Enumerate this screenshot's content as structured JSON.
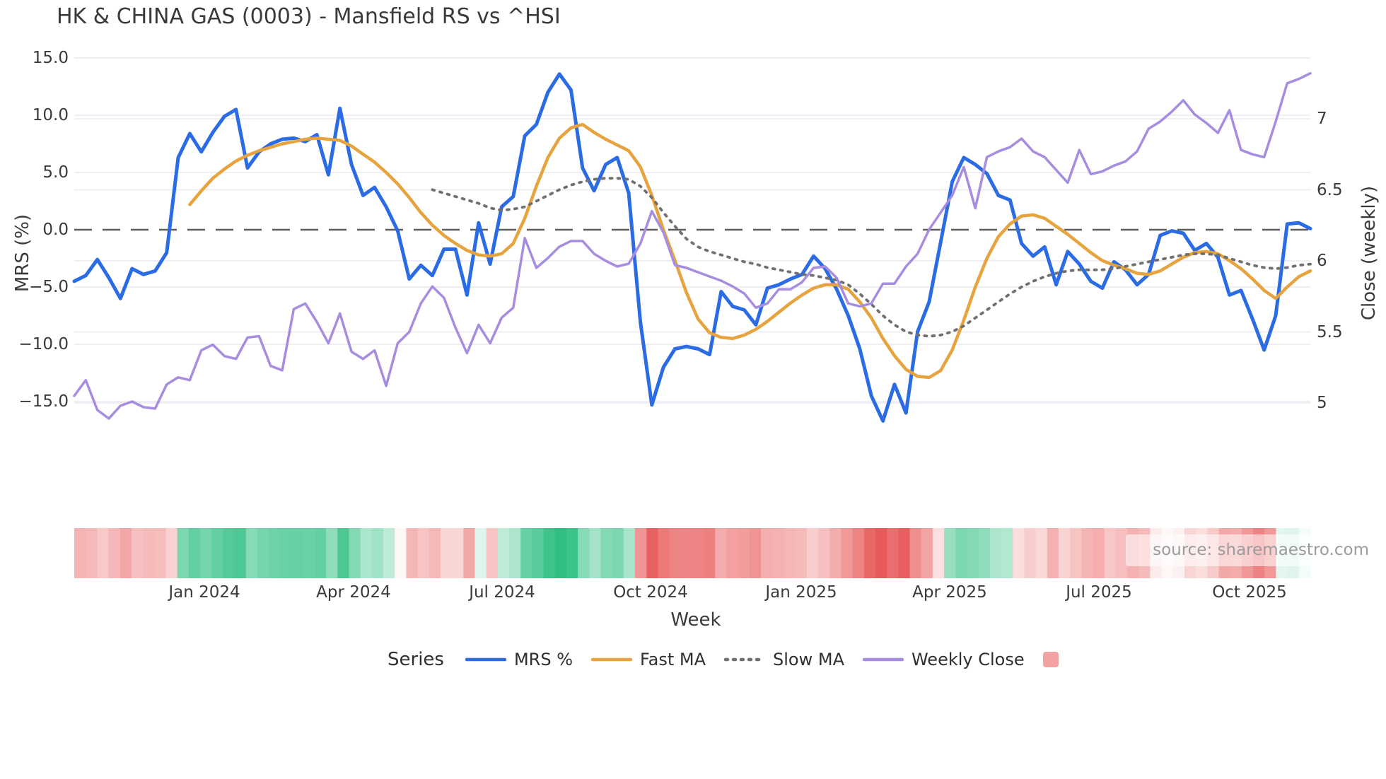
{
  "title": "HK & CHINA GAS (0003) - Mansfield RS vs ^HSI",
  "source": "source: sharemaestro.com",
  "axes": {
    "left_label": "MRS (%)",
    "right_label": "Close (weekly)",
    "x_label": "Week",
    "left_ticks": [
      {
        "value": 15,
        "label": "15.0"
      },
      {
        "value": 10,
        "label": "10.0"
      },
      {
        "value": 5,
        "label": "5.0"
      },
      {
        "value": 0,
        "label": "0.0"
      },
      {
        "value": -5,
        "label": "−5.0"
      },
      {
        "value": -10,
        "label": "−10.0"
      },
      {
        "value": -15,
        "label": "−15.0"
      }
    ],
    "right_ticks": [
      {
        "value": 7,
        "label": "7"
      },
      {
        "value": 6.5,
        "label": "6.5"
      },
      {
        "value": 6,
        "label": "6"
      },
      {
        "value": 5.5,
        "label": "5.5"
      },
      {
        "value": 5,
        "label": "5"
      }
    ],
    "x_ticks": [
      {
        "week": 11.26,
        "label": "Jan 2024"
      },
      {
        "week": 24.18,
        "label": "Apr 2024"
      },
      {
        "week": 37.03,
        "label": "Jul 2024"
      },
      {
        "week": 49.89,
        "label": "Oct 2024"
      },
      {
        "week": 62.93,
        "label": "Jan 2025"
      },
      {
        "week": 75.78,
        "label": "Apr 2025"
      },
      {
        "week": 88.7,
        "label": "Jul 2025"
      },
      {
        "week": 101.74,
        "label": "Oct 2025"
      }
    ]
  },
  "legend": {
    "title": "Series",
    "items": [
      {
        "label": "MRS %",
        "type": "line",
        "color": "#2b6be4",
        "dash": null
      },
      {
        "label": "Fast MA",
        "type": "line",
        "color": "#e6a33e",
        "dash": null
      },
      {
        "label": "Slow MA",
        "type": "line",
        "color": "#707070",
        "dash": "3 8"
      },
      {
        "label": "Weekly Close",
        "type": "line",
        "color": "#a78de0",
        "dash": null
      },
      {
        "label": "",
        "type": "square",
        "color": "#f2a2a2"
      }
    ]
  },
  "colors": {
    "grid": "#e9e9f0",
    "zero_line": "#5c5c5c",
    "text": "#3a3a3a",
    "heat_positive": "#2fbf81",
    "heat_negative": "#e85a5a"
  },
  "chart_data": {
    "type": "line",
    "title": "HK & CHINA GAS (0003) - Mansfield RS vs ^HSI",
    "xlabel": "Week",
    "ylabel_left": "MRS (%)",
    "ylabel_right": "Close (weekly)",
    "ylim_left": [
      -17.5,
      15.9
    ],
    "ylim_right": [
      4.85,
      7.45
    ],
    "x_range_labels": [
      "Oct 2023",
      "Nov 2025"
    ],
    "n_weeks": 108,
    "grid": true,
    "zero_line": true,
    "legend_position": "bottom",
    "heatmap": {
      "source_series": "MRS %",
      "note": "weekly strip under plot: red for negative MRS, green for positive",
      "positive_color": "#2fbf81",
      "negative_color": "#e85a5a",
      "positive_full_at": 13.6,
      "negative_full_at": 16.7
    },
    "series": [
      {
        "name": "MRS %",
        "axis": "left",
        "color": "#2b6be4",
        "width": 5,
        "dash": null,
        "values": [
          -4.5,
          -4.0,
          -2.6,
          -4.2,
          -6.0,
          -3.4,
          -3.9,
          -3.6,
          -2.0,
          6.3,
          8.4,
          6.8,
          8.5,
          9.9,
          10.5,
          5.4,
          6.8,
          7.5,
          7.9,
          8.0,
          7.7,
          8.3,
          4.8,
          10.6,
          5.7,
          3.0,
          3.7,
          2.0,
          -0.1,
          -4.3,
          -3.1,
          -4.0,
          -1.7,
          -1.7,
          -5.7,
          0.6,
          -3.0,
          2.0,
          2.9,
          8.2,
          9.2,
          12.0,
          13.6,
          12.2,
          5.4,
          3.4,
          5.7,
          6.3,
          3.2,
          -8.0,
          -15.3,
          -12.0,
          -10.4,
          -10.2,
          -10.4,
          -10.9,
          -5.4,
          -6.7,
          -7.0,
          -8.3,
          -5.1,
          -4.8,
          -4.3,
          -3.9,
          -2.3,
          -3.4,
          -5.2,
          -7.5,
          -10.4,
          -14.5,
          -16.7,
          -13.5,
          -16.0,
          -8.9,
          -6.3,
          -1.1,
          4.2,
          6.3,
          5.7,
          4.9,
          3.0,
          2.6,
          -1.2,
          -2.3,
          -1.5,
          -4.8,
          -1.9,
          -3.0,
          -4.5,
          -5.1,
          -2.8,
          -3.5,
          -4.8,
          -3.9,
          -0.5,
          -0.1,
          -0.3,
          -1.8,
          -1.2,
          -2.4,
          -5.7,
          -5.3,
          -7.8,
          -10.5,
          -7.5,
          0.5,
          0.6,
          0.1
        ]
      },
      {
        "name": "Fast MA",
        "axis": "left",
        "color": "#e6a33e",
        "width": 4.5,
        "dash": null,
        "values": [
          null,
          null,
          null,
          null,
          null,
          null,
          null,
          null,
          null,
          null,
          2.2,
          3.4,
          4.5,
          5.3,
          6.0,
          6.5,
          6.9,
          7.2,
          7.5,
          7.7,
          7.9,
          8.0,
          7.9,
          7.8,
          7.3,
          6.6,
          5.9,
          5.0,
          4.0,
          2.8,
          1.5,
          0.4,
          -0.5,
          -1.2,
          -1.8,
          -2.2,
          -2.3,
          -2.1,
          -1.2,
          1.0,
          3.8,
          6.3,
          8.0,
          8.9,
          9.2,
          8.5,
          7.9,
          7.4,
          6.9,
          5.5,
          3.0,
          0.0,
          -2.7,
          -5.5,
          -7.8,
          -9.0,
          -9.4,
          -9.5,
          -9.2,
          -8.7,
          -8.0,
          -7.2,
          -6.4,
          -5.7,
          -5.1,
          -4.8,
          -4.8,
          -5.2,
          -6.3,
          -7.7,
          -9.5,
          -11.0,
          -12.2,
          -12.8,
          -12.9,
          -12.3,
          -10.5,
          -7.9,
          -5.0,
          -2.5,
          -0.6,
          0.5,
          1.2,
          1.3,
          1.0,
          0.3,
          -0.4,
          -1.2,
          -2.0,
          -2.7,
          -3.1,
          -3.4,
          -3.8,
          -3.9,
          -3.6,
          -3.0,
          -2.4,
          -2.0,
          -1.9,
          -2.1,
          -2.7,
          -3.4,
          -4.3,
          -5.3,
          -6.0,
          -5.0,
          -4.1,
          -3.6
        ]
      },
      {
        "name": "Slow MA",
        "axis": "left",
        "color": "#707070",
        "width": 3.8,
        "dash": "3 8",
        "values": [
          null,
          null,
          null,
          null,
          null,
          null,
          null,
          null,
          null,
          null,
          null,
          null,
          null,
          null,
          null,
          null,
          null,
          null,
          null,
          null,
          null,
          null,
          null,
          null,
          null,
          null,
          null,
          null,
          null,
          null,
          null,
          3.5,
          3.2,
          2.9,
          2.6,
          2.3,
          1.9,
          1.7,
          1.8,
          2.0,
          2.5,
          3.0,
          3.5,
          3.9,
          4.2,
          4.4,
          4.5,
          4.5,
          4.4,
          3.8,
          2.8,
          1.5,
          0.3,
          -0.8,
          -1.5,
          -1.9,
          -2.2,
          -2.5,
          -2.8,
          -3.0,
          -3.3,
          -3.5,
          -3.7,
          -3.9,
          -4.0,
          -4.2,
          -4.4,
          -4.8,
          -5.6,
          -6.5,
          -7.5,
          -8.3,
          -8.9,
          -9.2,
          -9.3,
          -9.2,
          -8.9,
          -8.4,
          -7.7,
          -7.0,
          -6.3,
          -5.6,
          -5.0,
          -4.5,
          -4.1,
          -3.8,
          -3.6,
          -3.5,
          -3.5,
          -3.5,
          -3.4,
          -3.2,
          -3.0,
          -2.8,
          -2.6,
          -2.4,
          -2.2,
          -2.1,
          -2.1,
          -2.2,
          -2.5,
          -2.8,
          -3.1,
          -3.3,
          -3.4,
          -3.3,
          -3.1,
          -3.0
        ]
      },
      {
        "name": "Weekly Close",
        "axis": "right",
        "color": "#a78de0",
        "width": 3.5,
        "dash": null,
        "values": [
          5.05,
          5.16,
          4.95,
          4.89,
          4.98,
          5.01,
          4.97,
          4.96,
          5.13,
          5.18,
          5.16,
          5.37,
          5.41,
          5.33,
          5.31,
          5.46,
          5.47,
          5.26,
          5.23,
          5.66,
          5.7,
          5.57,
          5.42,
          5.63,
          5.36,
          5.31,
          5.37,
          5.12,
          5.42,
          5.5,
          5.7,
          5.82,
          5.74,
          5.53,
          5.35,
          5.55,
          5.42,
          5.6,
          5.67,
          6.16,
          5.95,
          6.02,
          6.1,
          6.14,
          6.14,
          6.05,
          6.0,
          5.96,
          5.98,
          6.12,
          6.35,
          6.2,
          5.97,
          5.95,
          5.92,
          5.89,
          5.86,
          5.82,
          5.77,
          5.67,
          5.7,
          5.8,
          5.8,
          5.85,
          5.95,
          5.96,
          5.88,
          5.7,
          5.68,
          5.7,
          5.84,
          5.84,
          5.96,
          6.05,
          6.22,
          6.34,
          6.46,
          6.66,
          6.37,
          6.73,
          6.77,
          6.8,
          6.86,
          6.77,
          6.73,
          6.64,
          6.55,
          6.78,
          6.61,
          6.63,
          6.67,
          6.7,
          6.77,
          6.93,
          6.98,
          7.05,
          7.13,
          7.03,
          6.97,
          6.9,
          7.06,
          6.78,
          6.75,
          6.73,
          6.98,
          7.25,
          7.28,
          7.32
        ]
      }
    ]
  }
}
